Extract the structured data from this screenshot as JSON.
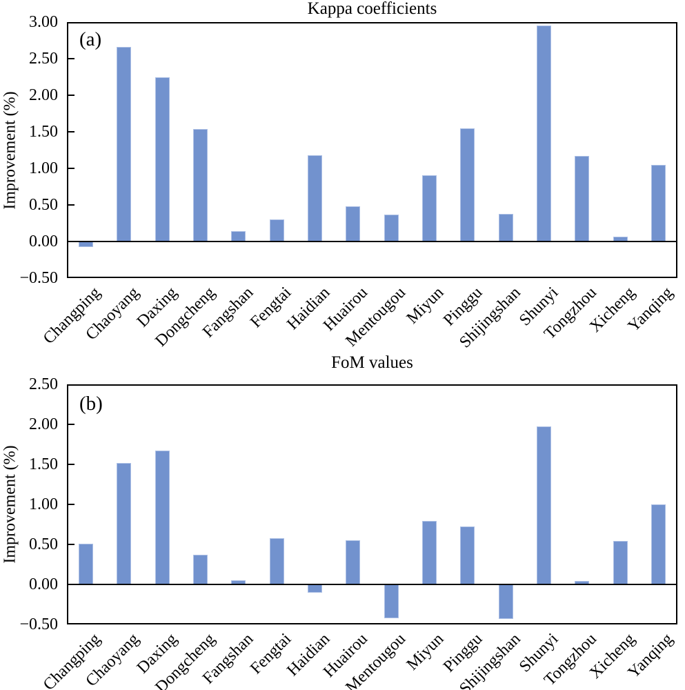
{
  "figure": {
    "bar_fill_color": "#7292CE",
    "bar_edge_color": "#ADC0E5",
    "axis_color": "#000000",
    "background_color": "#FFFFFF"
  },
  "chart_data": [
    {
      "type": "bar",
      "panel_label": "(a)",
      "title": "Kappa coefficients",
      "ylabel": "Improvement (%)",
      "xlabel": "",
      "grid": false,
      "legend": "none",
      "ylim": [
        -0.5,
        3.0
      ],
      "ytick_values": [
        3.0,
        2.5,
        2.0,
        1.5,
        1.0,
        0.5,
        0.0,
        -0.5
      ],
      "ytick_labels": [
        "3.00",
        "2.50",
        "2.00",
        "1.50",
        "1.00",
        "0.50",
        "0.00",
        "−0.50"
      ],
      "categories": [
        "Changping",
        "Chaoyang",
        "Daxing",
        "Dongcheng",
        "Fangshan",
        "Fengtai",
        "Haidian",
        "Huairou",
        "Mentougou",
        "Miyun",
        "Pinggu",
        "Shijingshan",
        "Shunyi",
        "Tongzhou",
        "Xicheng",
        "Yanqing"
      ],
      "values": [
        -0.08,
        2.66,
        2.25,
        1.54,
        0.14,
        0.3,
        1.18,
        0.48,
        0.37,
        0.91,
        1.55,
        0.38,
        2.95,
        1.17,
        0.07,
        1.05
      ]
    },
    {
      "type": "bar",
      "panel_label": "(b)",
      "title": "FoM values",
      "ylabel": "Improvement (%)",
      "xlabel": "",
      "grid": false,
      "legend": "none",
      "ylim": [
        -0.5,
        2.5
      ],
      "ytick_values": [
        2.5,
        2.0,
        1.5,
        1.0,
        0.5,
        0.0,
        -0.5
      ],
      "ytick_labels": [
        "2.50",
        "2.00",
        "1.50",
        "1.00",
        "0.50",
        "0.00",
        "−0.50"
      ],
      "categories": [
        "Changping",
        "Chaoyang",
        "Daxing",
        "Dongcheng",
        "Fangshan",
        "Fengtai",
        "Haidian",
        "Huairou",
        "Mentougou",
        "Miyun",
        "Pinggu",
        "Shijingshan",
        "Shunyi",
        "Tongzhou",
        "Xicheng",
        "Yanqing"
      ],
      "values": [
        0.51,
        1.52,
        1.67,
        0.37,
        0.05,
        0.58,
        -0.1,
        0.55,
        -0.42,
        0.79,
        0.72,
        -0.43,
        1.97,
        0.04,
        0.54,
        1.0
      ]
    }
  ]
}
